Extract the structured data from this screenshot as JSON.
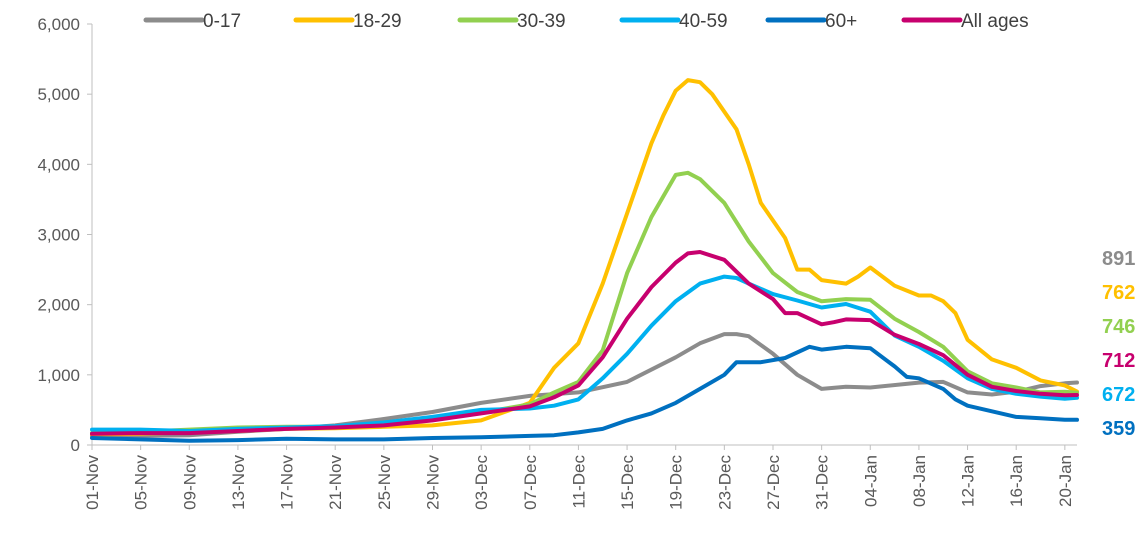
{
  "chart_data": {
    "type": "line",
    "title": "",
    "xlabel": "",
    "ylabel": "",
    "ylim": [
      0,
      6000
    ],
    "yticks": [
      0,
      1000,
      2000,
      3000,
      4000,
      5000,
      6000
    ],
    "ytick_labels": [
      "0",
      "1,000",
      "2,000",
      "3,000",
      "4,000",
      "5,000",
      "6,000"
    ],
    "x_start": "2021-11-01",
    "x_end": "2022-01-21",
    "xtick_labels": [
      "01-Nov",
      "05-Nov",
      "09-Nov",
      "13-Nov",
      "17-Nov",
      "21-Nov",
      "25-Nov",
      "29-Nov",
      "03-Dec",
      "07-Dec",
      "11-Dec",
      "15-Dec",
      "19-Dec",
      "23-Dec",
      "27-Dec",
      "31-Dec",
      "04-Jan",
      "08-Jan",
      "12-Jan",
      "16-Jan",
      "20-Jan"
    ],
    "grid": false,
    "legend_position": "top",
    "series": [
      {
        "name": "0-17",
        "color": "#8c8c8c",
        "end_label": "891",
        "points": [
          [
            "2021-11-01",
            130
          ],
          [
            "2021-11-05",
            130
          ],
          [
            "2021-11-09",
            140
          ],
          [
            "2021-11-13",
            190
          ],
          [
            "2021-11-17",
            230
          ],
          [
            "2021-11-21",
            280
          ],
          [
            "2021-11-25",
            370
          ],
          [
            "2021-11-29",
            470
          ],
          [
            "2021-12-03",
            600
          ],
          [
            "2021-12-07",
            700
          ],
          [
            "2021-12-11",
            750
          ],
          [
            "2021-12-15",
            900
          ],
          [
            "2021-12-19",
            1250
          ],
          [
            "2021-12-21",
            1450
          ],
          [
            "2021-12-23",
            1580
          ],
          [
            "2021-12-24",
            1580
          ],
          [
            "2021-12-25",
            1550
          ],
          [
            "2021-12-27",
            1300
          ],
          [
            "2021-12-29",
            1000
          ],
          [
            "2021-12-31",
            800
          ],
          [
            "2022-01-02",
            830
          ],
          [
            "2022-01-04",
            820
          ],
          [
            "2022-01-08",
            890
          ],
          [
            "2022-01-10",
            900
          ],
          [
            "2022-01-12",
            750
          ],
          [
            "2022-01-14",
            720
          ],
          [
            "2022-01-16",
            760
          ],
          [
            "2022-01-18",
            840
          ],
          [
            "2022-01-20",
            880
          ],
          [
            "2022-01-21",
            891
          ]
        ]
      },
      {
        "name": "18-29",
        "color": "#ffc000",
        "end_label": "762",
        "points": [
          [
            "2021-11-01",
            150
          ],
          [
            "2021-11-05",
            160
          ],
          [
            "2021-11-09",
            180
          ],
          [
            "2021-11-13",
            200
          ],
          [
            "2021-11-17",
            230
          ],
          [
            "2021-11-21",
            240
          ],
          [
            "2021-11-25",
            260
          ],
          [
            "2021-11-29",
            280
          ],
          [
            "2021-12-03",
            350
          ],
          [
            "2021-12-07",
            600
          ],
          [
            "2021-12-09",
            1100
          ],
          [
            "2021-12-11",
            1450
          ],
          [
            "2021-12-13",
            2300
          ],
          [
            "2021-12-15",
            3300
          ],
          [
            "2021-12-17",
            4300
          ],
          [
            "2021-12-18",
            4700
          ],
          [
            "2021-12-19",
            5050
          ],
          [
            "2021-12-20",
            5200
          ],
          [
            "2021-12-21",
            5170
          ],
          [
            "2021-12-22",
            5000
          ],
          [
            "2021-12-24",
            4500
          ],
          [
            "2021-12-25",
            4000
          ],
          [
            "2021-12-26",
            3450
          ],
          [
            "2021-12-28",
            2950
          ],
          [
            "2021-12-29",
            2500
          ],
          [
            "2021-12-30",
            2500
          ],
          [
            "2021-12-31",
            2350
          ],
          [
            "2022-01-02",
            2300
          ],
          [
            "2022-01-03",
            2400
          ],
          [
            "2022-01-04",
            2530
          ],
          [
            "2022-01-06",
            2270
          ],
          [
            "2022-01-08",
            2130
          ],
          [
            "2022-01-09",
            2130
          ],
          [
            "2022-01-10",
            2050
          ],
          [
            "2022-01-11",
            1880
          ],
          [
            "2022-01-12",
            1500
          ],
          [
            "2022-01-14",
            1220
          ],
          [
            "2022-01-16",
            1100
          ],
          [
            "2022-01-18",
            920
          ],
          [
            "2022-01-20",
            850
          ],
          [
            "2022-01-21",
            762
          ]
        ]
      },
      {
        "name": "30-39",
        "color": "#92d050",
        "end_label": "746",
        "points": [
          [
            "2021-11-01",
            170
          ],
          [
            "2021-11-05",
            190
          ],
          [
            "2021-11-09",
            220
          ],
          [
            "2021-11-13",
            250
          ],
          [
            "2021-11-17",
            260
          ],
          [
            "2021-11-21",
            260
          ],
          [
            "2021-11-25",
            300
          ],
          [
            "2021-11-29",
            360
          ],
          [
            "2021-12-03",
            460
          ],
          [
            "2021-12-07",
            580
          ],
          [
            "2021-12-09",
            750
          ],
          [
            "2021-12-11",
            900
          ],
          [
            "2021-12-13",
            1350
          ],
          [
            "2021-12-15",
            2450
          ],
          [
            "2021-12-17",
            3250
          ],
          [
            "2021-12-19",
            3850
          ],
          [
            "2021-12-20",
            3880
          ],
          [
            "2021-12-21",
            3790
          ],
          [
            "2021-12-23",
            3450
          ],
          [
            "2021-12-25",
            2900
          ],
          [
            "2021-12-27",
            2450
          ],
          [
            "2021-12-29",
            2180
          ],
          [
            "2021-12-31",
            2050
          ],
          [
            "2022-01-02",
            2080
          ],
          [
            "2022-01-04",
            2070
          ],
          [
            "2022-01-06",
            1800
          ],
          [
            "2022-01-08",
            1610
          ],
          [
            "2022-01-10",
            1400
          ],
          [
            "2022-01-12",
            1050
          ],
          [
            "2022-01-14",
            880
          ],
          [
            "2022-01-16",
            820
          ],
          [
            "2022-01-18",
            750
          ],
          [
            "2022-01-20",
            760
          ],
          [
            "2022-01-21",
            746
          ]
        ]
      },
      {
        "name": "40-59",
        "color": "#00b0f0",
        "end_label": "672",
        "points": [
          [
            "2021-11-01",
            220
          ],
          [
            "2021-11-05",
            220
          ],
          [
            "2021-11-09",
            200
          ],
          [
            "2021-11-13",
            230
          ],
          [
            "2021-11-17",
            250
          ],
          [
            "2021-11-21",
            270
          ],
          [
            "2021-11-25",
            320
          ],
          [
            "2021-11-29",
            400
          ],
          [
            "2021-12-03",
            500
          ],
          [
            "2021-12-07",
            520
          ],
          [
            "2021-12-09",
            560
          ],
          [
            "2021-12-11",
            650
          ],
          [
            "2021-12-13",
            950
          ],
          [
            "2021-12-15",
            1300
          ],
          [
            "2021-12-17",
            1700
          ],
          [
            "2021-12-19",
            2050
          ],
          [
            "2021-12-21",
            2300
          ],
          [
            "2021-12-23",
            2400
          ],
          [
            "2021-12-24",
            2380
          ],
          [
            "2021-12-25",
            2300
          ],
          [
            "2021-12-27",
            2150
          ],
          [
            "2021-12-29",
            2060
          ],
          [
            "2021-12-31",
            1960
          ],
          [
            "2022-01-02",
            2010
          ],
          [
            "2022-01-04",
            1900
          ],
          [
            "2022-01-06",
            1560
          ],
          [
            "2022-01-08",
            1400
          ],
          [
            "2022-01-10",
            1200
          ],
          [
            "2022-01-12",
            950
          ],
          [
            "2022-01-14",
            800
          ],
          [
            "2022-01-16",
            730
          ],
          [
            "2022-01-18",
            690
          ],
          [
            "2022-01-20",
            660
          ],
          [
            "2022-01-21",
            672
          ]
        ]
      },
      {
        "name": "60+",
        "color": "#0070c0",
        "end_label": "359",
        "points": [
          [
            "2021-11-01",
            100
          ],
          [
            "2021-11-05",
            80
          ],
          [
            "2021-11-09",
            60
          ],
          [
            "2021-11-13",
            70
          ],
          [
            "2021-11-17",
            90
          ],
          [
            "2021-11-21",
            80
          ],
          [
            "2021-11-25",
            80
          ],
          [
            "2021-11-29",
            100
          ],
          [
            "2021-12-03",
            110
          ],
          [
            "2021-12-07",
            130
          ],
          [
            "2021-12-09",
            140
          ],
          [
            "2021-12-11",
            180
          ],
          [
            "2021-12-13",
            230
          ],
          [
            "2021-12-15",
            350
          ],
          [
            "2021-12-17",
            450
          ],
          [
            "2021-12-19",
            600
          ],
          [
            "2021-12-21",
            800
          ],
          [
            "2021-12-23",
            1000
          ],
          [
            "2021-12-24",
            1180
          ],
          [
            "2021-12-26",
            1180
          ],
          [
            "2021-12-28",
            1240
          ],
          [
            "2021-12-30",
            1400
          ],
          [
            "2021-12-31",
            1360
          ],
          [
            "2022-01-02",
            1400
          ],
          [
            "2022-01-04",
            1380
          ],
          [
            "2022-01-06",
            1120
          ],
          [
            "2022-01-07",
            970
          ],
          [
            "2022-01-08",
            950
          ],
          [
            "2022-01-10",
            800
          ],
          [
            "2022-01-11",
            650
          ],
          [
            "2022-01-12",
            560
          ],
          [
            "2022-01-14",
            480
          ],
          [
            "2022-01-16",
            400
          ],
          [
            "2022-01-18",
            380
          ],
          [
            "2022-01-20",
            360
          ],
          [
            "2022-01-21",
            359
          ]
        ]
      },
      {
        "name": "All ages",
        "color": "#c7006e",
        "end_label": "712",
        "points": [
          [
            "2021-11-01",
            160
          ],
          [
            "2021-11-05",
            170
          ],
          [
            "2021-11-09",
            170
          ],
          [
            "2021-11-13",
            200
          ],
          [
            "2021-11-17",
            230
          ],
          [
            "2021-11-21",
            250
          ],
          [
            "2021-11-25",
            280
          ],
          [
            "2021-11-29",
            350
          ],
          [
            "2021-12-03",
            450
          ],
          [
            "2021-12-07",
            550
          ],
          [
            "2021-12-09",
            680
          ],
          [
            "2021-12-11",
            850
          ],
          [
            "2021-12-13",
            1250
          ],
          [
            "2021-12-15",
            1800
          ],
          [
            "2021-12-17",
            2250
          ],
          [
            "2021-12-19",
            2600
          ],
          [
            "2021-12-20",
            2730
          ],
          [
            "2021-12-21",
            2750
          ],
          [
            "2021-12-23",
            2640
          ],
          [
            "2021-12-25",
            2300
          ],
          [
            "2021-12-27",
            2080
          ],
          [
            "2021-12-28",
            1880
          ],
          [
            "2021-12-29",
            1880
          ],
          [
            "2021-12-31",
            1720
          ],
          [
            "2022-01-01",
            1750
          ],
          [
            "2022-01-02",
            1790
          ],
          [
            "2022-01-04",
            1780
          ],
          [
            "2022-01-06",
            1570
          ],
          [
            "2022-01-08",
            1440
          ],
          [
            "2022-01-10",
            1280
          ],
          [
            "2022-01-12",
            1000
          ],
          [
            "2022-01-14",
            830
          ],
          [
            "2022-01-16",
            770
          ],
          [
            "2022-01-18",
            730
          ],
          [
            "2022-01-20",
            710
          ],
          [
            "2022-01-21",
            712
          ]
        ]
      }
    ]
  }
}
